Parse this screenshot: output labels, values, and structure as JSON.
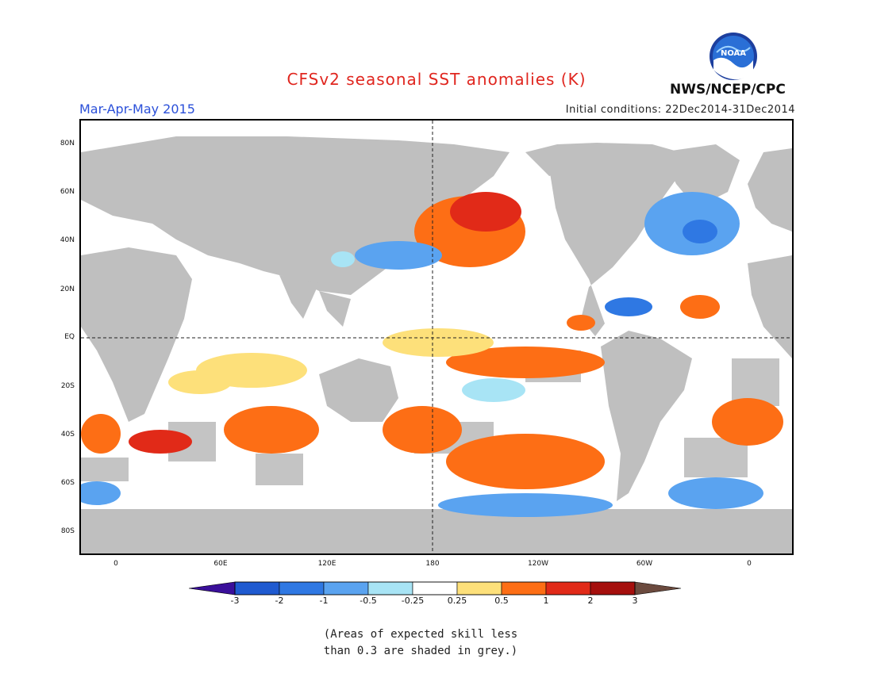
{
  "header": {
    "title": "CFSv2 seasonal SST anomalies (K)",
    "season": "Mar-Apr-May 2015",
    "initial_conditions": "Initial conditions: 22Dec2014-31Dec2014",
    "agency": "NWS/NCEP/CPC",
    "logo_text": "NOAA"
  },
  "map": {
    "lat_labels": [
      "80N",
      "60N",
      "40N",
      "20N",
      "EQ",
      "20S",
      "40S",
      "60S",
      "80S"
    ],
    "lon_labels": [
      "0",
      "60E",
      "120E",
      "180",
      "120W",
      "60W",
      "0"
    ],
    "land_color": "#c0c0c0",
    "low_skill_color": "#c8c8c8"
  },
  "colorbar": {
    "labels": [
      "-3",
      "-2",
      "-1",
      "-0.5",
      "-0.25",
      "0.25",
      "0.5",
      "1",
      "2",
      "3"
    ],
    "colors": [
      "#3a0f9a",
      "#1f5ad0",
      "#2f78e3",
      "#5aa3f0",
      "#a8e4f5",
      "#ffffff",
      "#fde07a",
      "#fd6e15",
      "#e12a18",
      "#a50f0d",
      "#6b4a3e"
    ]
  },
  "footer": {
    "note_line1": "(Areas of expected skill less",
    "note_line2": "than 0.3 are shaded in grey.)"
  }
}
